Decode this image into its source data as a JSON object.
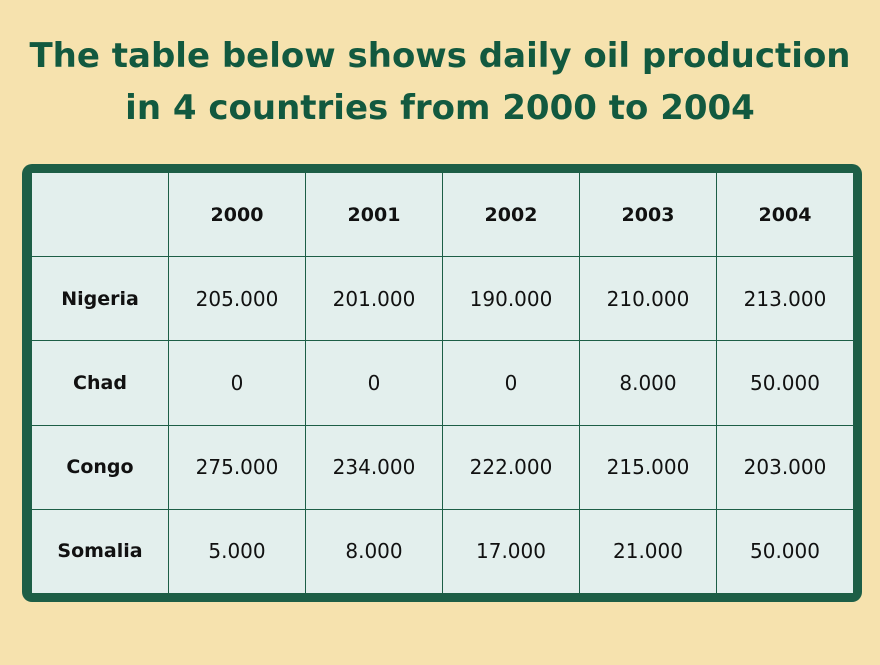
{
  "title_lines": [
    "The table below shows daily oil production",
    "in 4 countries from 2000 to 2004"
  ],
  "colors": {
    "background": "#f6e2ae",
    "frame": "#1d5e46",
    "title": "#12593f",
    "cell": "#e3efed"
  },
  "chart_data": {
    "type": "table",
    "title": "The table below shows daily oil production in 4 countries from 2000 to 2004",
    "columns": [
      "",
      "2000",
      "2001",
      "2002",
      "2003",
      "2004"
    ],
    "rows": [
      {
        "label": "Nigeria",
        "values": [
          "205.000",
          "201.000",
          "190.000",
          "210.000",
          "213.000"
        ]
      },
      {
        "label": "Chad",
        "values": [
          "0",
          "0",
          "0",
          "8.000",
          "50.000"
        ]
      },
      {
        "label": "Congo",
        "values": [
          "275.000",
          "234.000",
          "222.000",
          "215.000",
          "203.000"
        ]
      },
      {
        "label": "Somalia",
        "values": [
          "5.000",
          "8.000",
          "17.000",
          "21.000",
          "50.000"
        ]
      }
    ]
  }
}
